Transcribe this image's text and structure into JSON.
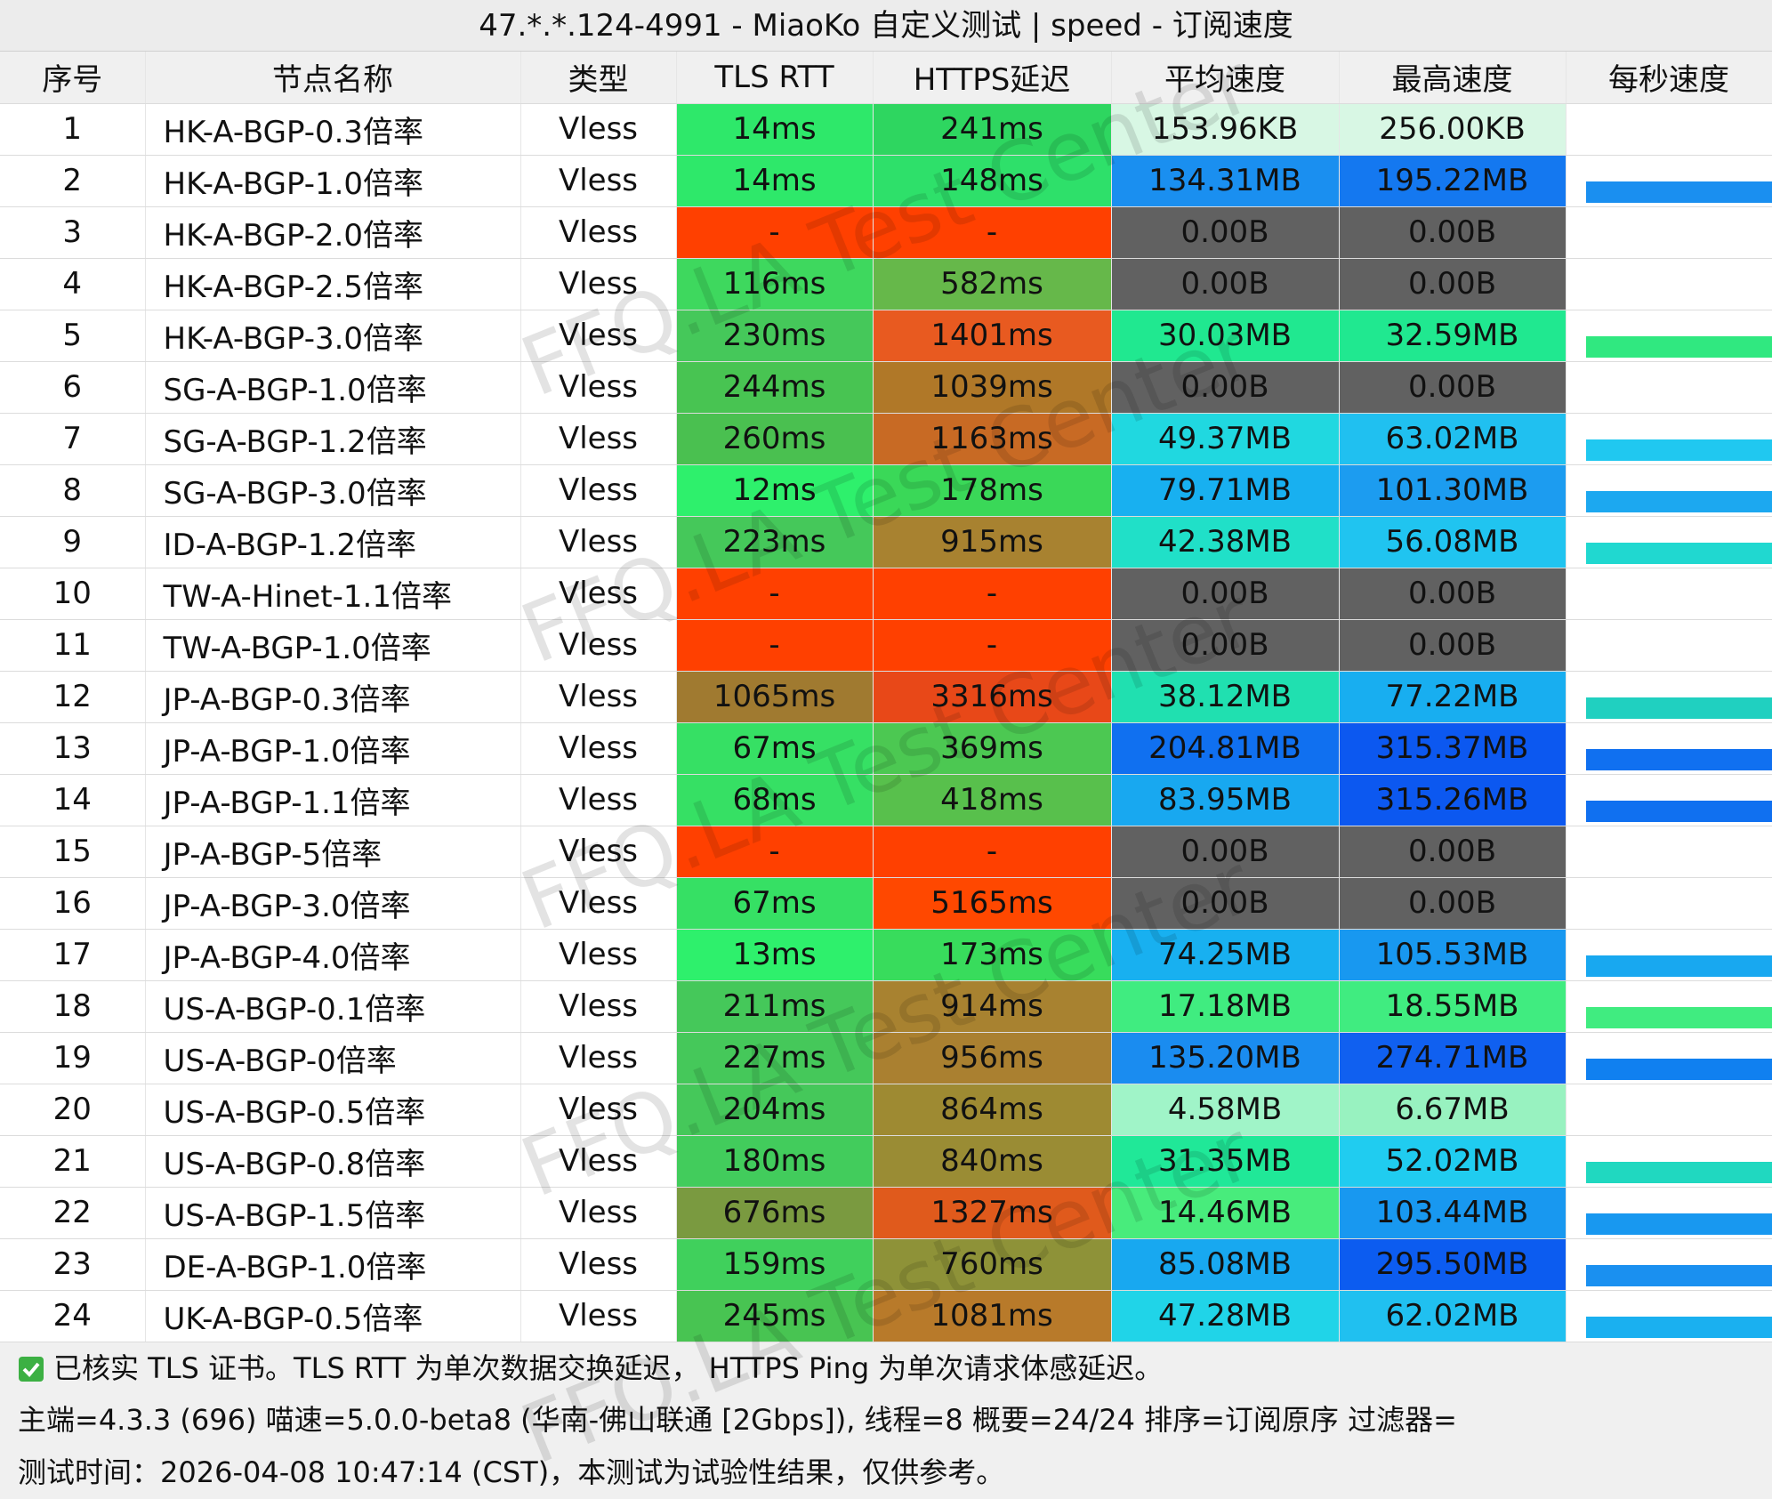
{
  "title": "47.*.*.124-4991 - MiaoKo 自定义测试 | speed - 订阅速度",
  "headers": [
    "序号",
    "节点名称",
    "类型",
    "TLS RTT",
    "HTTPS延迟",
    "平均速度",
    "最高速度",
    "每秒速度"
  ],
  "rows": [
    {
      "cells": [
        "1",
        "HK-A-BGP-0.3倍率",
        "Vless",
        "14ms",
        "241ms",
        "153.96KB",
        "256.00KB"
      ],
      "colors": [
        "#2ee86a",
        "#2ed660",
        "#d8f7e4",
        "#d8f7e4",
        null
      ]
    },
    {
      "cells": [
        "2",
        "HK-A-BGP-1.0倍率",
        "Vless",
        "14ms",
        "148ms",
        "134.31MB",
        "195.22MB"
      ],
      "colors": [
        "#2ee86a",
        "#2ee06a",
        "#1a8ff0",
        "#1478f0",
        "#1a8ff0"
      ]
    },
    {
      "cells": [
        "3",
        "HK-A-BGP-2.0倍率",
        "Vless",
        "-",
        "-",
        "0.00B",
        "0.00B"
      ],
      "colors": [
        "#ff4000",
        "#ff4000",
        "#616161",
        "#616161",
        null
      ]
    },
    {
      "cells": [
        "4",
        "HK-A-BGP-2.5倍率",
        "Vless",
        "116ms",
        "582ms",
        "0.00B",
        "0.00B"
      ],
      "colors": [
        "#3ed85e",
        "#66b84a",
        "#616161",
        "#616161",
        null
      ]
    },
    {
      "cells": [
        "5",
        "HK-A-BGP-3.0倍率",
        "Vless",
        "230ms",
        "1401ms",
        "30.03MB",
        "32.59MB"
      ],
      "colors": [
        "#45c85a",
        "#e85a20",
        "#20e890",
        "#20e890",
        "#30e880"
      ]
    },
    {
      "cells": [
        "6",
        "SG-A-BGP-1.0倍率",
        "Vless",
        "244ms",
        "1039ms",
        "0.00B",
        "0.00B"
      ],
      "colors": [
        "#48c452",
        "#b07828",
        "#616161",
        "#616161",
        null
      ]
    },
    {
      "cells": [
        "7",
        "SG-A-BGP-1.2倍率",
        "Vless",
        "260ms",
        "1163ms",
        "49.37MB",
        "63.02MB"
      ],
      "colors": [
        "#4ac050",
        "#c86a24",
        "#20d8e0",
        "#20c0f0",
        "#20c8f0"
      ]
    },
    {
      "cells": [
        "8",
        "SG-A-BGP-3.0倍率",
        "Vless",
        "12ms",
        "178ms",
        "79.71MB",
        "101.30MB"
      ],
      "colors": [
        "#2ef06c",
        "#3ad858",
        "#18b0f0",
        "#1c9cf0",
        "#1ca8f0"
      ]
    },
    {
      "cells": [
        "9",
        "ID-A-BGP-1.2倍率",
        "Vless",
        "223ms",
        "915ms",
        "42.38MB",
        "56.08MB"
      ],
      "colors": [
        "#45c85a",
        "#a88230",
        "#20e0c8",
        "#20c4f0",
        "#20d8d0"
      ]
    },
    {
      "cells": [
        "10",
        "TW-A-Hinet-1.1倍率",
        "Vless",
        "-",
        "-",
        "0.00B",
        "0.00B"
      ],
      "colors": [
        "#ff4000",
        "#ff4000",
        "#616161",
        "#616161",
        null
      ]
    },
    {
      "cells": [
        "11",
        "TW-A-BGP-1.0倍率",
        "Vless",
        "-",
        "-",
        "0.00B",
        "0.00B"
      ],
      "colors": [
        "#ff4000",
        "#ff4000",
        "#616161",
        "#616161",
        null
      ]
    },
    {
      "cells": [
        "12",
        "JP-A-BGP-0.3倍率",
        "Vless",
        "1065ms",
        "3316ms",
        "38.12MB",
        "77.22MB"
      ],
      "colors": [
        "#a07a30",
        "#e84818",
        "#20e0b0",
        "#18aef0",
        "#20d0c0"
      ]
    },
    {
      "cells": [
        "13",
        "JP-A-BGP-1.0倍率",
        "Vless",
        "67ms",
        "369ms",
        "204.81MB",
        "315.37MB"
      ],
      "colors": [
        "#36e064",
        "#4cc852",
        "#1070f0",
        "#0c58f0",
        "#1070f0"
      ]
    },
    {
      "cells": [
        "14",
        "JP-A-BGP-1.1倍率",
        "Vless",
        "68ms",
        "418ms",
        "83.95MB",
        "315.26MB"
      ],
      "colors": [
        "#36e064",
        "#58c04c",
        "#18a8f0",
        "#0c58f0",
        "#1070f0"
      ]
    },
    {
      "cells": [
        "15",
        "JP-A-BGP-5倍率",
        "Vless",
        "-",
        "-",
        "0.00B",
        "0.00B"
      ],
      "colors": [
        "#ff4000",
        "#ff4000",
        "#616161",
        "#616161",
        null
      ]
    },
    {
      "cells": [
        "16",
        "JP-A-BGP-3.0倍率",
        "Vless",
        "67ms",
        "5165ms",
        "0.00B",
        "0.00B"
      ],
      "colors": [
        "#36e064",
        "#ff4800",
        "#616161",
        "#616161",
        null
      ]
    },
    {
      "cells": [
        "17",
        "JP-A-BGP-4.0倍率",
        "Vless",
        "13ms",
        "173ms",
        "74.25MB",
        "105.53MB"
      ],
      "colors": [
        "#2ef06c",
        "#38dc5c",
        "#18b0f0",
        "#1898f0",
        "#18a8f0"
      ]
    },
    {
      "cells": [
        "18",
        "US-A-BGP-0.1倍率",
        "Vless",
        "211ms",
        "914ms",
        "17.18MB",
        "18.55MB"
      ],
      "colors": [
        "#45c85a",
        "#a88230",
        "#40ec80",
        "#40ec80",
        "#40ec80"
      ]
    },
    {
      "cells": [
        "19",
        "US-A-BGP-0倍率",
        "Vless",
        "227ms",
        "956ms",
        "135.20MB",
        "274.71MB"
      ],
      "colors": [
        "#45c85a",
        "#aa8030",
        "#1a8cf0",
        "#1060f0",
        "#1080f0"
      ]
    },
    {
      "cells": [
        "20",
        "US-A-BGP-0.5倍率",
        "Vless",
        "204ms",
        "864ms",
        "4.58MB",
        "6.67MB"
      ],
      "colors": [
        "#45c85a",
        "#9e8a32",
        "#a0f4c8",
        "#98f2c0",
        null
      ]
    },
    {
      "cells": [
        "21",
        "US-A-BGP-0.8倍率",
        "Vless",
        "180ms",
        "840ms",
        "31.35MB",
        "52.02MB"
      ],
      "colors": [
        "#42cc5c",
        "#9a8c34",
        "#20e898",
        "#20ccf0",
        "#20d8c0"
      ]
    },
    {
      "cells": [
        "22",
        "US-A-BGP-1.5倍率",
        "Vless",
        "676ms",
        "1327ms",
        "14.46MB",
        "103.44MB"
      ],
      "colors": [
        "#7a9a40",
        "#e05a1c",
        "#48ec7c",
        "#1898f0",
        "#1898f0"
      ]
    },
    {
      "cells": [
        "23",
        "DE-A-BGP-1.0倍率",
        "Vless",
        "159ms",
        "760ms",
        "85.08MB",
        "295.50MB"
      ],
      "colors": [
        "#40d05c",
        "#8e9238",
        "#18a8f0",
        "#0c5cf0",
        "#1a90f0"
      ]
    },
    {
      "cells": [
        "24",
        "UK-A-BGP-0.5倍率",
        "Vless",
        "245ms",
        "1081ms",
        "47.28MB",
        "62.02MB"
      ],
      "colors": [
        "#48c452",
        "#b87a2a",
        "#20d4e8",
        "#20c0f0",
        "#1ab0f0"
      ]
    }
  ],
  "footer": {
    "note": "已核实 TLS 证书。TLS RTT 为单次数据交换延迟， HTTPS Ping 为单次请求体感延迟。",
    "line2": "主端=4.3.3 (696) 喵速=5.0.0-beta8 (华南-佛山联通 [2Gbps]), 线程=8 概要=24/24 排序=订阅原序 过滤器=",
    "line3": "测试时间：2026-04-08 10:47:14 (CST)，本测试为试验性结果，仅供参考。"
  },
  "watermark": "FFQ.LA Test Center"
}
